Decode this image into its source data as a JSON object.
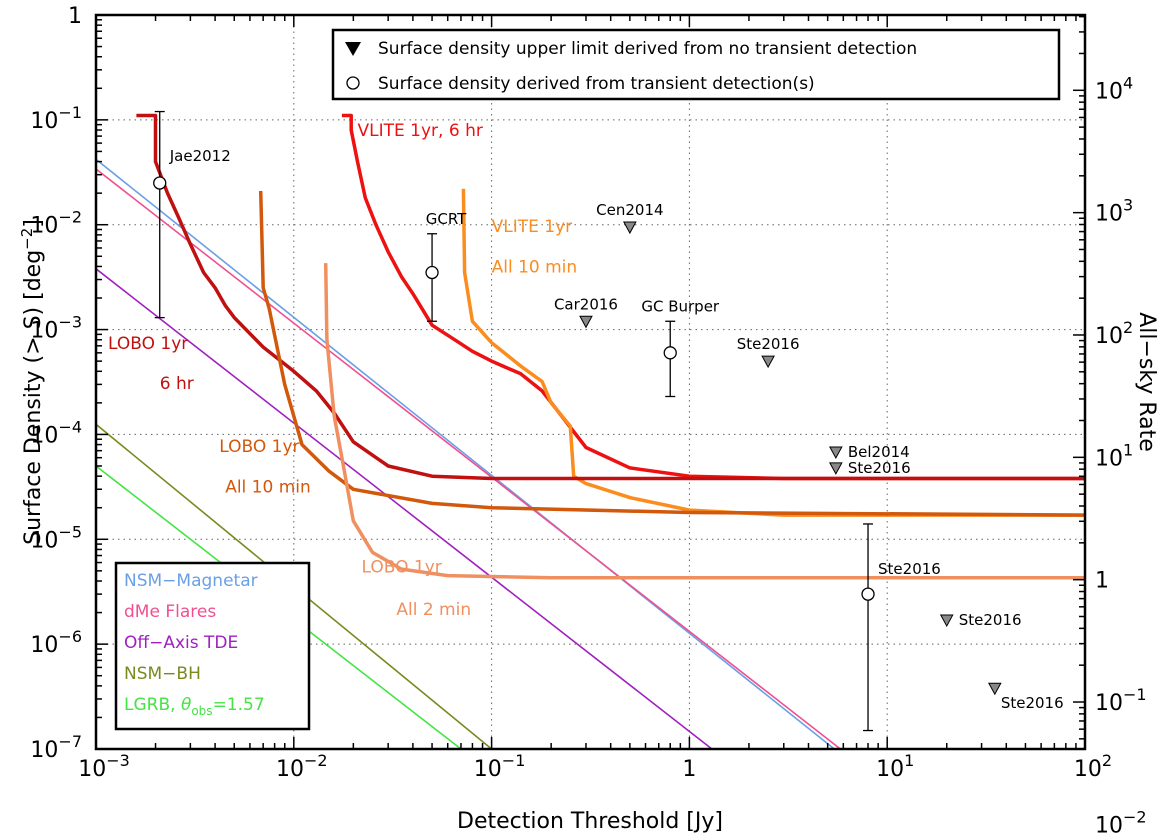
{
  "chart_data": {
    "type": "line",
    "xlabel": "Detection Threshold [Jy]",
    "ylabel": "Surface Density (> S) [deg",
    "ylabel_sup": "−2",
    "ylabel_close": "]",
    "y2label": "All−sky Rate",
    "x_scale": "log",
    "y_scale": "log",
    "xlim": [
      0.001,
      100
    ],
    "ylim": [
      1e-07,
      1
    ],
    "y2lim": [
      0.0413,
      41253
    ],
    "grid": true,
    "x_ticks": [
      {
        "v": 0.001,
        "b": "10",
        "e": "−3"
      },
      {
        "v": 0.01,
        "b": "10",
        "e": "−2"
      },
      {
        "v": 0.1,
        "b": "10",
        "e": "−1"
      },
      {
        "v": 1,
        "b": "1",
        "e": ""
      },
      {
        "v": 10,
        "b": "10",
        "e": "1"
      },
      {
        "v": 100,
        "b": "10",
        "e": "2"
      }
    ],
    "y_ticks": [
      {
        "v": 1e-07,
        "b": "10",
        "e": "−7"
      },
      {
        "v": 1e-06,
        "b": "10",
        "e": "−6"
      },
      {
        "v": 1e-05,
        "b": "10",
        "e": "−5"
      },
      {
        "v": 0.0001,
        "b": "10",
        "e": "−4"
      },
      {
        "v": 0.001,
        "b": "10",
        "e": "−3"
      },
      {
        "v": 0.01,
        "b": "10",
        "e": "−2"
      },
      {
        "v": 0.1,
        "b": "10",
        "e": "−1"
      },
      {
        "v": 1,
        "b": "1",
        "e": ""
      }
    ],
    "y2_ticks": [
      {
        "v": 0.01,
        "b": "10",
        "e": "−2"
      },
      {
        "v": 0.1,
        "b": "10",
        "e": "−1"
      },
      {
        "v": 1,
        "b": "1",
        "e": ""
      },
      {
        "v": 10,
        "b": "10",
        "e": "1"
      },
      {
        "v": 100,
        "b": "10",
        "e": "2"
      },
      {
        "v": 1000,
        "b": "10",
        "e": "3"
      },
      {
        "v": 10000,
        "b": "10",
        "e": "4"
      }
    ],
    "legend": [
      {
        "marker": "triangle",
        "label": "Surface density upper limit derived from no transient detection"
      },
      {
        "marker": "circle",
        "label": "Surface density derived from transient detection(s)"
      }
    ],
    "model_lines": [
      {
        "name": "NSM−Magnetar",
        "color": "#6a9fe6",
        "points": [
          [
            0.001,
            0.042
          ],
          [
            5.4,
            1e-07
          ]
        ]
      },
      {
        "name": "dMe Flares",
        "color": "#f0508f",
        "points": [
          [
            0.001,
            0.034
          ],
          [
            5.8,
            1e-07
          ]
        ]
      },
      {
        "name": "Off−Axis TDE",
        "color": "#a020c0",
        "points": [
          [
            0.001,
            0.0038
          ],
          [
            1.3,
            1e-07
          ]
        ]
      },
      {
        "name": "NSM−BH",
        "color": "#7a8a20",
        "points": [
          [
            0.001,
            0.000125
          ],
          [
            0.1,
            1e-07
          ]
        ]
      },
      {
        "name": "LGRB, θobs=1.57",
        "color": "#44e444",
        "points": [
          [
            0.001,
            5e-05
          ],
          [
            0.07,
            1e-07
          ]
        ]
      }
    ],
    "model_legend": [
      {
        "text": "NSM−Magnetar",
        "color": "#6a9fe6",
        "sub": ""
      },
      {
        "text": "dMe Flares",
        "color": "#f0508f",
        "sub": ""
      },
      {
        "text": "Off−Axis TDE",
        "color": "#a020c0",
        "sub": ""
      },
      {
        "text": "NSM−BH",
        "color": "#7a8a20",
        "sub": ""
      },
      {
        "text": "LGRB, ",
        "color": "#44e444",
        "theta": "θ",
        "sub": "obs",
        "tail": "=1.57"
      }
    ],
    "series": [
      {
        "name": "VLITE 1yr, 6 hr",
        "color": "#ee1111",
        "width": 3.5,
        "points": [
          [
            0.0175,
            0.11
          ],
          [
            0.0195,
            0.11
          ],
          [
            0.0195,
            0.08
          ],
          [
            0.021,
            0.04
          ],
          [
            0.023,
            0.018
          ],
          [
            0.026,
            0.01
          ],
          [
            0.03,
            0.0055
          ],
          [
            0.035,
            0.0032
          ],
          [
            0.04,
            0.0022
          ],
          [
            0.05,
            0.0011
          ],
          [
            0.065,
            0.0008
          ],
          [
            0.08,
            0.00062
          ],
          [
            0.1,
            0.0005
          ],
          [
            0.12,
            0.00043
          ],
          [
            0.14,
            0.00038
          ],
          [
            0.18,
            0.00026
          ],
          [
            0.22,
            0.00016
          ],
          [
            0.3,
            7.5e-05
          ],
          [
            0.5,
            4.8e-05
          ],
          [
            1,
            4e-05
          ],
          [
            3,
            3.8e-05
          ],
          [
            100,
            3.8e-05
          ]
        ]
      },
      {
        "name": "VLITE 1yr All 10 min",
        "color": "#fb8c1e",
        "width": 3.5,
        "points": [
          [
            0.072,
            0.022
          ],
          [
            0.073,
            0.0035
          ],
          [
            0.08,
            0.0012
          ],
          [
            0.1,
            0.00075
          ],
          [
            0.14,
            0.00045
          ],
          [
            0.18,
            0.00032
          ],
          [
            0.2,
            0.0002
          ],
          [
            0.25,
            0.00012
          ],
          [
            0.26,
            4e-05
          ],
          [
            0.3,
            3.4e-05
          ],
          [
            0.5,
            2.5e-05
          ],
          [
            1,
            1.9e-05
          ],
          [
            3,
            1.7e-05
          ],
          [
            100,
            1.7e-05
          ]
        ]
      },
      {
        "name": "LOBO 1yr 6 hr",
        "color": "#c01010",
        "width": 3.5,
        "points": [
          [
            0.0016,
            0.11
          ],
          [
            0.002,
            0.11
          ],
          [
            0.002,
            0.04
          ],
          [
            0.0023,
            0.02
          ],
          [
            0.0026,
            0.012
          ],
          [
            0.003,
            0.0065
          ],
          [
            0.0035,
            0.0035
          ],
          [
            0.004,
            0.0025
          ],
          [
            0.0045,
            0.0017
          ],
          [
            0.005,
            0.0013
          ],
          [
            0.007,
            0.00068
          ],
          [
            0.01,
            0.0004
          ],
          [
            0.013,
            0.00026
          ],
          [
            0.016,
            0.00016
          ],
          [
            0.02,
            8.5e-05
          ],
          [
            0.03,
            5e-05
          ],
          [
            0.05,
            4e-05
          ],
          [
            0.1,
            3.8e-05
          ],
          [
            100,
            3.8e-05
          ]
        ]
      },
      {
        "name": "LOBO 1yr All 10 min",
        "color": "#d2580c",
        "width": 3.5,
        "points": [
          [
            0.0068,
            0.021
          ],
          [
            0.007,
            0.0025
          ],
          [
            0.0075,
            0.0016
          ],
          [
            0.009,
            0.0003
          ],
          [
            0.011,
            8e-05
          ],
          [
            0.015,
            4.5e-05
          ],
          [
            0.02,
            3e-05
          ],
          [
            0.05,
            2.2e-05
          ],
          [
            0.1,
            2e-05
          ],
          [
            1,
            1.8e-05
          ],
          [
            100,
            1.7e-05
          ]
        ]
      },
      {
        "name": "LOBO 1yr All 2 min",
        "color": "#f09060",
        "width": 3.5,
        "points": [
          [
            0.0145,
            0.0043
          ],
          [
            0.0147,
            0.0008
          ],
          [
            0.016,
            0.00015
          ],
          [
            0.018,
            4.5e-05
          ],
          [
            0.02,
            1.5e-05
          ],
          [
            0.025,
            7.5e-06
          ],
          [
            0.035,
            5.2e-06
          ],
          [
            0.06,
            4.5e-06
          ],
          [
            0.2,
            4.3e-06
          ],
          [
            100,
            4.3e-06
          ]
        ]
      }
    ],
    "curve_labels": [
      {
        "text": "VLITE 1yr, 6 hr",
        "color": "#ee1111",
        "x": 0.021,
        "y": 0.07
      },
      {
        "text": "VLITE 1yr",
        "color": "#fb8c1e",
        "x": 0.1,
        "y": 0.0085
      },
      {
        "text": "All 10 min",
        "color": "#fb8c1e",
        "x": 0.1,
        "y": 0.0035
      },
      {
        "text": "LOBO 1yr",
        "color": "#c01010",
        "x": 0.00115,
        "y": 0.00065
      },
      {
        "text": "6 hr",
        "color": "#c01010",
        "x": 0.0021,
        "y": 0.00027
      },
      {
        "text": "LOBO 1yr",
        "color": "#d2580c",
        "x": 0.0042,
        "y": 6.8e-05
      },
      {
        "text": "All 10 min",
        "color": "#d2580c",
        "x": 0.0045,
        "y": 2.8e-05
      },
      {
        "text": "LOBO 1yr",
        "color": "#f09060",
        "x": 0.022,
        "y": 4.8e-06
      },
      {
        "text": "All 2 min",
        "color": "#f09060",
        "x": 0.033,
        "y": 1.9e-06
      }
    ],
    "detections": [
      {
        "label": "Jae2012",
        "x": 0.0021,
        "y": 0.025,
        "ylow": 0.0013,
        "yhigh": 0.12
      },
      {
        "label": "GCRT",
        "x": 0.05,
        "y": 0.0035,
        "ylow": 0.0012,
        "yhigh": 0.0082
      },
      {
        "label": "GC Burper",
        "x": 0.8,
        "y": 0.0006,
        "ylow": 0.00023,
        "yhigh": 0.0012
      },
      {
        "label": "Ste2016",
        "x": 8,
        "y": 3e-06,
        "ylow": 1.5e-07,
        "yhigh": 1.4e-05
      }
    ],
    "upper_limits": [
      {
        "label": "Cen2014",
        "x": 0.5,
        "y": 0.0095
      },
      {
        "label": "Car2016",
        "x": 0.3,
        "y": 0.0012
      },
      {
        "label": "Ste2016",
        "x": 2.5,
        "y": 0.0005
      },
      {
        "label": "Bel2014",
        "x": 5.5,
        "y": 6.8e-05
      },
      {
        "label": "Ste2016",
        "x": 5.5,
        "y": 4.8e-05
      },
      {
        "label": "Ste2016",
        "x": 20,
        "y": 1.7e-06
      },
      {
        "label": "Ste2016",
        "x": 35,
        "y": 3.8e-07
      }
    ]
  }
}
